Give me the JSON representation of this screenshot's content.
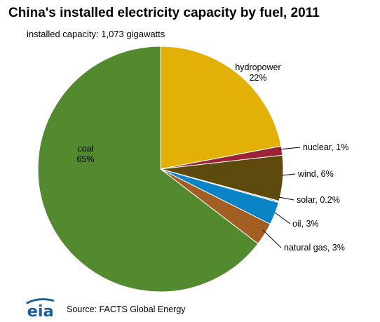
{
  "header": {
    "title": "China's installed electricity capacity by fuel, 2011",
    "subtitle": "installed capacity: 1,073 gigawatts"
  },
  "footer": {
    "logo_text": "eia",
    "source": "Source: FACTS Global Energy"
  },
  "chart_data": {
    "type": "pie",
    "title": "China's installed electricity capacity by fuel, 2011",
    "subtitle": "installed capacity: 1,073 gigawatts",
    "total": "1,073 gigawatts",
    "slices": [
      {
        "name": "hydropower",
        "label": "22%",
        "value": 22.0,
        "color": "#e2b007"
      },
      {
        "name": "nuclear",
        "label": "1%",
        "value": 1.2,
        "color": "#9b2335"
      },
      {
        "name": "wind",
        "label": "6%",
        "value": 6.0,
        "color": "#5e4a0c"
      },
      {
        "name": "solar",
        "label": "0.2%",
        "value": 0.2,
        "color": "#a8c8d8"
      },
      {
        "name": "oil",
        "label": "3%",
        "value": 3.0,
        "color": "#0b84c6"
      },
      {
        "name": "natural gas",
        "label": "3%",
        "value": 3.0,
        "color": "#a35e23"
      },
      {
        "name": "coal",
        "label": "65%",
        "value": 64.6,
        "color": "#548a2f"
      }
    ],
    "start_angle_deg": 0,
    "direction": "clockwise"
  },
  "colors": {
    "logo_blue": "#1a5d9a",
    "leader_line": "#000000"
  }
}
